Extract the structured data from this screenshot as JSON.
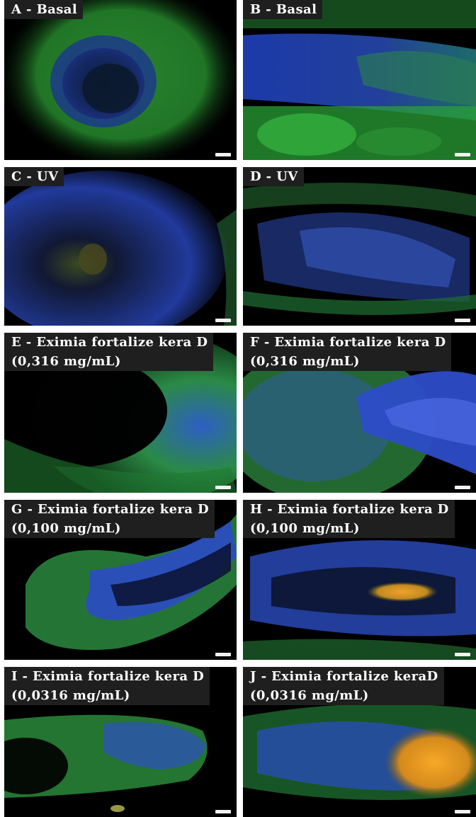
{
  "panels": [
    {
      "id": "A",
      "line1": "A - Basal",
      "line2": ""
    },
    {
      "id": "B",
      "line1": "B - Basal",
      "line2": ""
    },
    {
      "id": "C",
      "line1": "C - UV",
      "line2": ""
    },
    {
      "id": "D",
      "line1": "D - UV",
      "line2": ""
    },
    {
      "id": "E",
      "line1": "E - Eximia fortalize kera D",
      "line2": "(0,316 mg/mL)"
    },
    {
      "id": "F",
      "line1": "F - Eximia fortalize kera D",
      "line2": "(0,316 mg/mL)"
    },
    {
      "id": "G",
      "line1": "G - Eximia fortalize kera D",
      "line2": "(0,100 mg/mL)"
    },
    {
      "id": "H",
      "line1": "H - Eximia fortalize kera D",
      "line2": "(0,100 mg/mL)"
    },
    {
      "id": "I",
      "line1": "I - Eximia fortalize kera D",
      "line2": "(0,0316 mg/mL)"
    },
    {
      "id": "J",
      "line1": "J - Eximia fortalize keraD",
      "line2": "(0,0316 mg/mL)"
    }
  ],
  "colors": {
    "background": "#000000",
    "stain_green": "#3aa83a",
    "stain_blue": "#2e4fd0",
    "stain_yellow": "#e8a21c",
    "label_bg": "#1f1f1f",
    "label_text": "#ffffff"
  }
}
